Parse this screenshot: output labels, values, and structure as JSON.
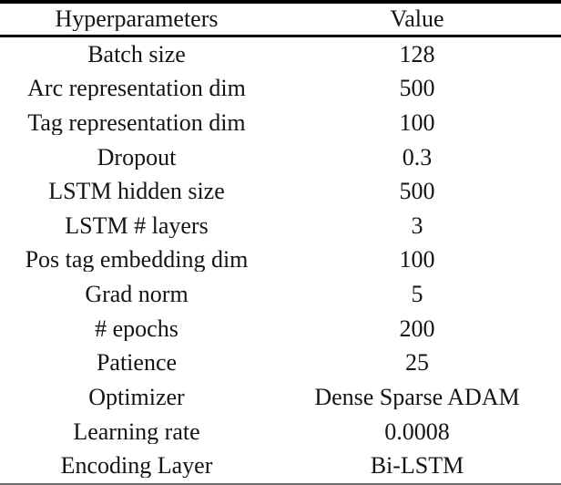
{
  "table": {
    "headers": [
      "Hyperparameters",
      "Value"
    ],
    "rows": [
      {
        "param": "Batch size",
        "value": "128"
      },
      {
        "param": "Arc representation dim",
        "value": "500"
      },
      {
        "param": "Tag representation dim",
        "value": "100"
      },
      {
        "param": "Dropout",
        "value": "0.3"
      },
      {
        "param": "LSTM hidden size",
        "value": "500"
      },
      {
        "param": "LSTM # layers",
        "value": "3"
      },
      {
        "param": "Pos tag embedding dim",
        "value": "100"
      },
      {
        "param": "Grad norm",
        "value": "5"
      },
      {
        "param": "# epochs",
        "value": "200"
      },
      {
        "param": "Patience",
        "value": "25"
      },
      {
        "param": "Optimizer",
        "value": "Dense Sparse ADAM"
      },
      {
        "param": "Learning rate",
        "value": "0.0008"
      },
      {
        "param": "Encoding Layer",
        "value": "Bi-LSTM"
      }
    ]
  },
  "colors": {
    "background": "#ffffff",
    "text": "#141414",
    "rule_top": "#000000",
    "rule_header": "#000000",
    "rule_bottom": "#6f6f6f"
  }
}
